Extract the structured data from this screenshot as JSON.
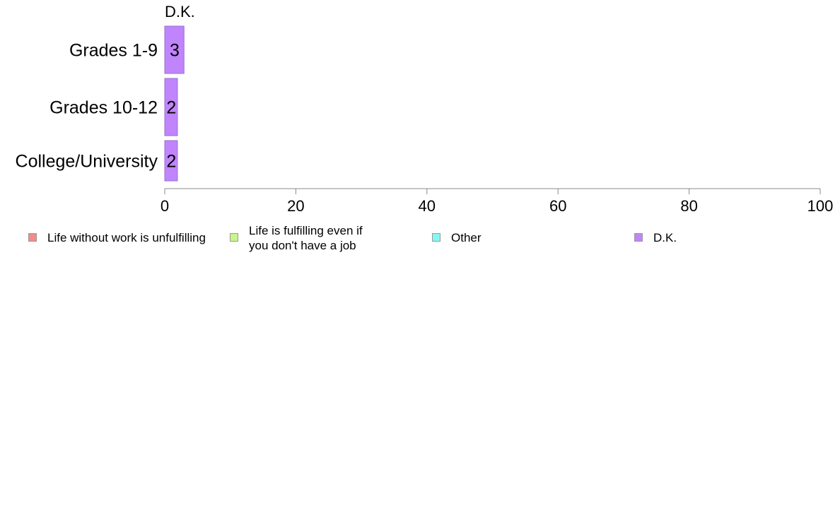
{
  "chart_data": {
    "type": "bar",
    "orientation": "horizontal",
    "panel_title": "D.K.",
    "categories": [
      "Grades 1-9",
      "Grades 10-12",
      "College/University"
    ],
    "series": [
      {
        "name": "D.K.",
        "values": [
          3,
          2,
          2
        ],
        "labels": [
          "3",
          "2",
          "2"
        ],
        "color": "#c084fc"
      }
    ],
    "xlim": [
      0,
      100
    ],
    "xticks": [
      "0",
      "20",
      "40",
      "60",
      "80",
      "100"
    ],
    "grid": false,
    "legend_position": "bottom",
    "legend": [
      {
        "label": "Life without work is unfulfilling",
        "color": "#f48a8a"
      },
      {
        "label": "Life is fulfilling even if\nyou don't have a job",
        "color": "#c8f58a"
      },
      {
        "label": "Other",
        "color": "#86f7f0"
      },
      {
        "label": "D.K.",
        "color": "#c084fc"
      }
    ]
  }
}
